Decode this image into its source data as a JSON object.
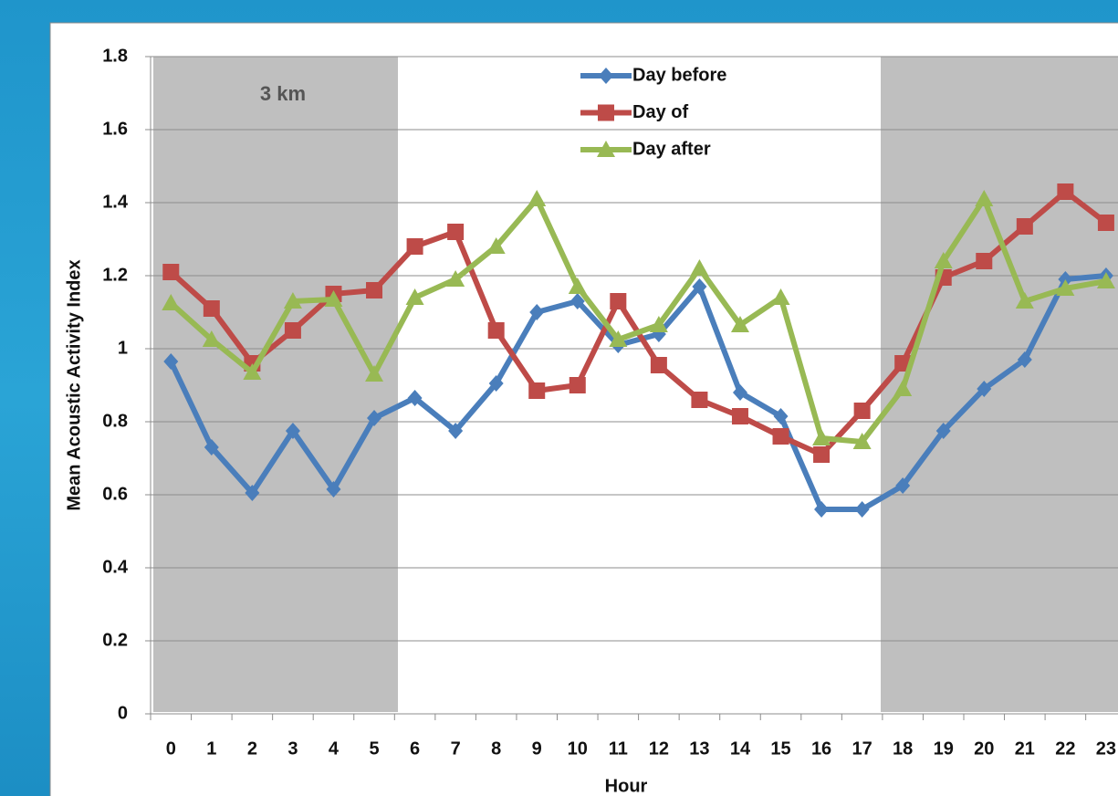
{
  "chart_data": {
    "type": "line",
    "annotation": "3 km",
    "x_label": "Hour",
    "y_label": "Mean Acoustic Activity Index",
    "categories": [
      "0",
      "1",
      "2",
      "3",
      "4",
      "5",
      "6",
      "7",
      "8",
      "9",
      "10",
      "11",
      "12",
      "13",
      "14",
      "15",
      "16",
      "17",
      "18",
      "19",
      "20",
      "21",
      "22",
      "23"
    ],
    "series": [
      {
        "name": "Day before",
        "color": "#4a7ebb",
        "marker": "diamond",
        "values": [
          0.965,
          0.73,
          0.605,
          0.775,
          0.615,
          0.81,
          0.865,
          0.775,
          0.905,
          1.1,
          1.13,
          1.01,
          1.04,
          1.17,
          0.88,
          0.815,
          0.56,
          0.56,
          0.625,
          0.775,
          0.89,
          0.97,
          1.19,
          1.2
        ]
      },
      {
        "name": "Day of",
        "color": "#be4b48",
        "marker": "square",
        "values": [
          1.21,
          1.11,
          0.96,
          1.05,
          1.15,
          1.16,
          1.28,
          1.32,
          1.05,
          0.885,
          0.9,
          1.13,
          0.955,
          0.86,
          0.815,
          0.76,
          0.71,
          0.83,
          0.96,
          1.195,
          1.24,
          1.335,
          1.43,
          1.345
        ]
      },
      {
        "name": "Day after",
        "color": "#98b954",
        "marker": "triangle",
        "values": [
          1.125,
          1.025,
          0.935,
          1.13,
          1.135,
          0.93,
          1.14,
          1.19,
          1.28,
          1.41,
          1.17,
          1.025,
          1.065,
          1.22,
          1.065,
          1.14,
          0.755,
          0.745,
          0.89,
          1.24,
          1.41,
          1.13,
          1.165,
          1.185
        ]
      }
    ],
    "ylim": [
      0,
      1.8
    ],
    "yticks": [
      0,
      0.2,
      0.4,
      0.6,
      0.8,
      1,
      1.2,
      1.4,
      1.6,
      1.8
    ],
    "grid": true
  }
}
